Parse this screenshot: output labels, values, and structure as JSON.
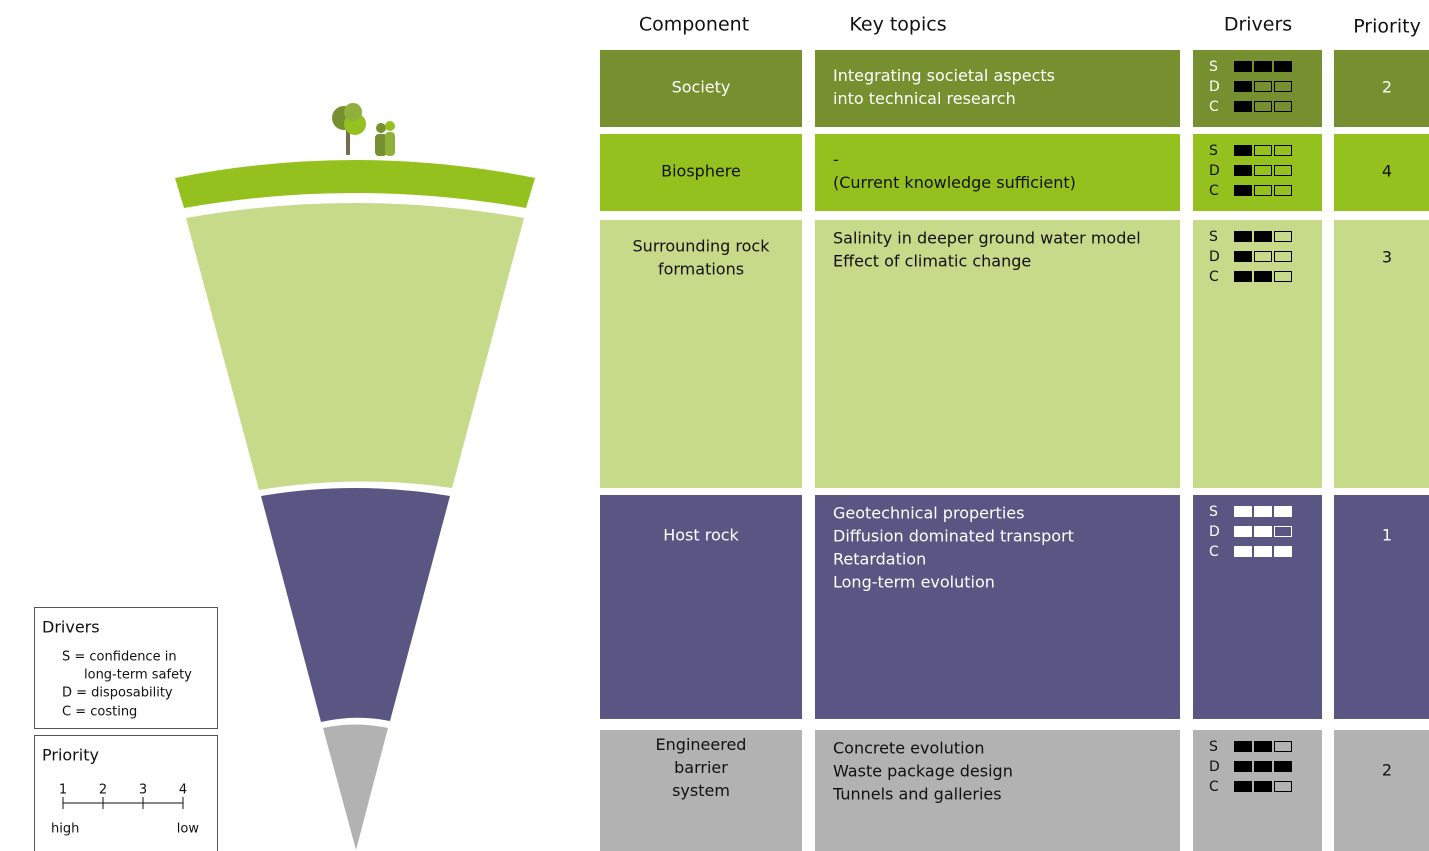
{
  "header": {
    "component": "Component",
    "key_topics": "Key topics",
    "drivers": "Drivers",
    "priority": "Priority"
  },
  "rows": [
    {
      "component": [
        "Society"
      ],
      "topics": [
        "Integrating societal aspects",
        "into technical research"
      ],
      "color": "#76902f",
      "drivers": [
        {
          "letter": "S",
          "filled": 3
        },
        {
          "letter": "D",
          "filled": 1
        },
        {
          "letter": "C",
          "filled": 1
        }
      ],
      "priority": 2
    },
    {
      "component": [
        "Biosphere"
      ],
      "topics": [
        "-",
        "(Current knowledge sufficient)"
      ],
      "color": "#95c11f",
      "drivers": [
        {
          "letter": "S",
          "filled": 1
        },
        {
          "letter": "D",
          "filled": 1
        },
        {
          "letter": "C",
          "filled": 1
        }
      ],
      "priority": 4
    },
    {
      "component": [
        "Surrounding rock",
        "formations"
      ],
      "topics": [
        "Salinity in deeper ground water model",
        "Effect of climatic change"
      ],
      "color": "#c6da8a",
      "drivers": [
        {
          "letter": "S",
          "filled": 2
        },
        {
          "letter": "D",
          "filled": 1
        },
        {
          "letter": "C",
          "filled": 2
        }
      ],
      "priority": 3
    },
    {
      "component": [
        "Host rock"
      ],
      "topics": [
        "Geotechnical properties",
        "Diffusion dominated transport",
        "Retardation",
        "Long-term evolution"
      ],
      "color": "#5b5584",
      "drivers": [
        {
          "letter": "S",
          "filled": 3
        },
        {
          "letter": "D",
          "filled": 2
        },
        {
          "letter": "C",
          "filled": 3
        }
      ],
      "priority": 1
    },
    {
      "component": [
        "Engineered",
        "barrier",
        "system"
      ],
      "topics": [
        "Concrete evolution",
        "Waste package design",
        "Tunnels and galleries"
      ],
      "color": "#b2b2b2",
      "drivers": [
        {
          "letter": "S",
          "filled": 2
        },
        {
          "letter": "D",
          "filled": 3
        },
        {
          "letter": "C",
          "filled": 2
        }
      ],
      "priority": 2
    }
  ],
  "legend": {
    "drivers": {
      "title": "Drivers",
      "items": [
        "S = confidence in",
        "long-term safety",
        "D = disposability",
        "C = costing"
      ]
    },
    "priority": {
      "title": "Priority",
      "ticks": [
        "1",
        "2",
        "3",
        "4"
      ],
      "high": "high",
      "low": "low"
    }
  }
}
